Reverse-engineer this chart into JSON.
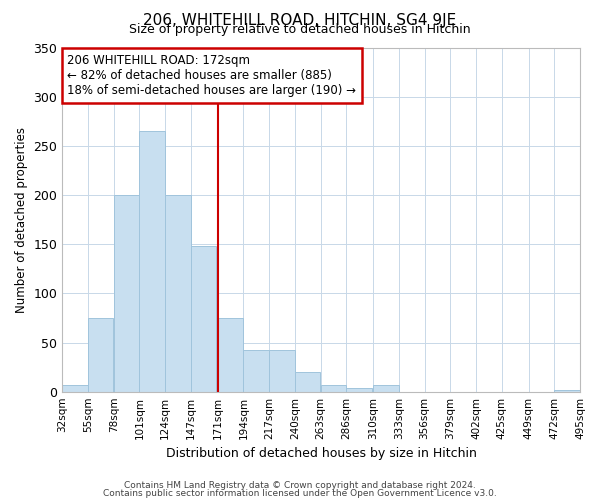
{
  "title": "206, WHITEHILL ROAD, HITCHIN, SG4 9JE",
  "subtitle": "Size of property relative to detached houses in Hitchin",
  "xlabel": "Distribution of detached houses by size in Hitchin",
  "ylabel": "Number of detached properties",
  "bar_color": "#c8dff0",
  "bar_edge_color": "#a0c4dc",
  "vline_color": "#cc0000",
  "vline_x": 171,
  "bins": [
    32,
    55,
    78,
    101,
    124,
    147,
    171,
    194,
    217,
    240,
    263,
    286,
    310,
    333,
    356,
    379,
    402,
    425,
    449,
    472,
    495
  ],
  "bar_heights": [
    7,
    75,
    200,
    265,
    200,
    148,
    75,
    42,
    42,
    20,
    7,
    4,
    7,
    0,
    0,
    0,
    0,
    0,
    0,
    2
  ],
  "tick_labels": [
    "32sqm",
    "55sqm",
    "78sqm",
    "101sqm",
    "124sqm",
    "147sqm",
    "171sqm",
    "194sqm",
    "217sqm",
    "240sqm",
    "263sqm",
    "286sqm",
    "310sqm",
    "333sqm",
    "356sqm",
    "379sqm",
    "402sqm",
    "425sqm",
    "449sqm",
    "472sqm",
    "495sqm"
  ],
  "ylim": [
    0,
    350
  ],
  "yticks": [
    0,
    50,
    100,
    150,
    200,
    250,
    300,
    350
  ],
  "annotation_title": "206 WHITEHILL ROAD: 172sqm",
  "annotation_line1": "← 82% of detached houses are smaller (885)",
  "annotation_line2": "18% of semi-detached houses are larger (190) →",
  "footer1": "Contains HM Land Registry data © Crown copyright and database right 2024.",
  "footer2": "Contains public sector information licensed under the Open Government Licence v3.0."
}
